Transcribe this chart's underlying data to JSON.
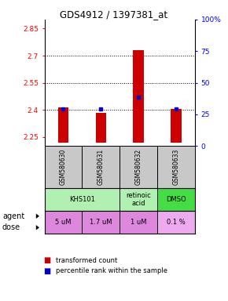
{
  "title": "GDS4912 / 1397381_at",
  "samples": [
    "GSM580630",
    "GSM580631",
    "GSM580632",
    "GSM580633"
  ],
  "bar_bottoms": [
    2.22,
    2.22,
    2.22,
    2.22
  ],
  "bar_tops": [
    2.415,
    2.385,
    2.73,
    2.405
  ],
  "percentile_values": [
    2.405,
    2.405,
    2.47,
    2.405
  ],
  "ylim": [
    2.2,
    2.9
  ],
  "yticks_left": [
    2.25,
    2.4,
    2.55,
    2.7,
    2.85
  ],
  "yticks_right": [
    0,
    25,
    50,
    75,
    100
  ],
  "yticks_right_labels": [
    "0",
    "25",
    "50",
    "75",
    "100%"
  ],
  "hlines": [
    2.4,
    2.55,
    2.7
  ],
  "bar_color": "#cc0000",
  "percentile_color": "#0000cc",
  "agent_data": [
    {
      "cols": [
        0,
        1
      ],
      "label": "KHS101",
      "color": "#b0f0b0"
    },
    {
      "cols": [
        2
      ],
      "label": "retinoic\nacid",
      "color": "#b0f0b0"
    },
    {
      "cols": [
        3
      ],
      "label": "DMSO",
      "color": "#44dd44"
    }
  ],
  "dose_labels": [
    "5 uM",
    "1.7 uM",
    "1 uM",
    "0.1 %"
  ],
  "dose_colors": [
    "#dd88dd",
    "#dd88dd",
    "#dd88dd",
    "#eeaaee"
  ],
  "sample_bg_color": "#c8c8c8",
  "legend_red": "transformed count",
  "legend_blue": "percentile rank within the sample"
}
